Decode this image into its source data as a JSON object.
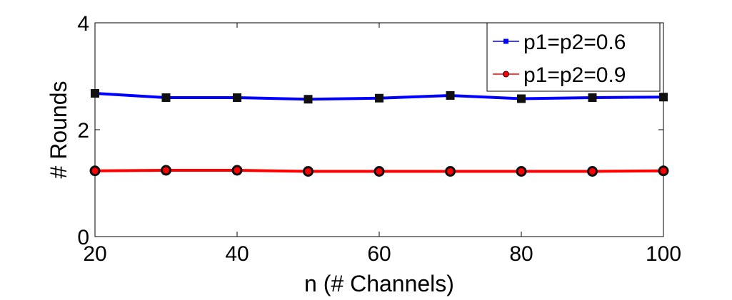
{
  "chart_data": {
    "type": "line",
    "title": "",
    "xlabel": "n (# Channels)",
    "ylabel": "# Rounds",
    "xlim": [
      20,
      100
    ],
    "ylim": [
      0,
      4
    ],
    "x_ticks": [
      "20",
      "40",
      "60",
      "80",
      "100"
    ],
    "y_ticks": [
      "0",
      "2",
      "4"
    ],
    "grid": false,
    "legend_position": "top-right",
    "x": [
      20,
      30,
      40,
      50,
      60,
      70,
      80,
      90,
      100
    ],
    "series": [
      {
        "name": "p1=p2=0.6",
        "color": "#0000ff",
        "marker": "square",
        "values": [
          2.68,
          2.6,
          2.6,
          2.57,
          2.59,
          2.64,
          2.58,
          2.6,
          2.61
        ]
      },
      {
        "name": "p1=p2=0.9",
        "color": "#ff0000",
        "marker": "circle",
        "values": [
          1.23,
          1.24,
          1.24,
          1.22,
          1.22,
          1.22,
          1.22,
          1.22,
          1.23
        ]
      }
    ]
  }
}
